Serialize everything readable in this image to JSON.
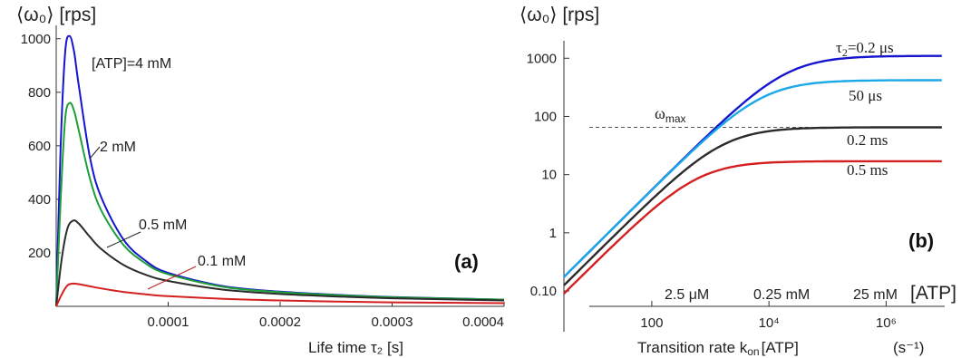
{
  "chart_data": [
    {
      "type": "line",
      "panel_label": "(a)",
      "ylabel": "⟨ω₀⟩ [rps]",
      "xlabel": "Life time  τ₂ [s]",
      "xlim": [
        0,
        0.0004
      ],
      "ylim": [
        0,
        1050
      ],
      "xticks": [
        0.0001,
        0.0002,
        0.0003,
        0.0004
      ],
      "xtick_labels": [
        "0.0001",
        "0.0002",
        "0.0003",
        "0.0004"
      ],
      "yticks": [
        200,
        400,
        600,
        800,
        1000
      ],
      "ytick_labels": [
        "200",
        "400",
        "600",
        "800",
        "1000"
      ],
      "series": [
        {
          "name": "[ATP]=4 mM",
          "color": "#1515d0",
          "x": [
            0,
            4e-06,
            8e-06,
            1.2e-05,
            1.6e-05,
            2e-05,
            3e-05,
            4e-05,
            6e-05,
            8e-05,
            0.0001,
            0.00015,
            0.0002,
            0.00025,
            0.0003,
            0.0004
          ],
          "y": [
            0,
            600,
            950,
            1010,
            950,
            830,
            560,
            410,
            250,
            170,
            125,
            75,
            55,
            43,
            35,
            25
          ]
        },
        {
          "name": "2 mM",
          "color": "#1f9e3a",
          "x": [
            0,
            4e-06,
            8e-06,
            1.2e-05,
            1.6e-05,
            2e-05,
            3e-05,
            4e-05,
            6e-05,
            8e-05,
            0.0001,
            0.00015,
            0.0002,
            0.00025,
            0.0003,
            0.0004
          ],
          "y": [
            0,
            400,
            700,
            760,
            730,
            660,
            480,
            360,
            230,
            160,
            120,
            72,
            53,
            42,
            34,
            25
          ]
        },
        {
          "name": "0.5 mM",
          "color": "#2b2b2b",
          "x": [
            0,
            5e-06,
            1e-05,
            1.5e-05,
            2e-05,
            3e-05,
            4e-05,
            6e-05,
            8e-05,
            0.0001,
            0.00015,
            0.0002,
            0.00025,
            0.0003,
            0.0004
          ],
          "y": [
            0,
            180,
            290,
            320,
            310,
            260,
            215,
            155,
            118,
            95,
            62,
            46,
            37,
            30,
            22
          ]
        },
        {
          "name": "0.1 mM",
          "color": "#d42020",
          "x": [
            0,
            5e-06,
            1e-05,
            1.5e-05,
            2e-05,
            3e-05,
            4e-05,
            6e-05,
            8e-05,
            0.0001,
            0.00015,
            0.0002,
            0.00025,
            0.0003,
            0.0004
          ],
          "y": [
            0,
            45,
            78,
            85,
            83,
            75,
            67,
            54,
            45,
            38,
            28,
            22,
            18,
            15,
            12
          ]
        }
      ],
      "annotations": [
        "[ATP]=4 mM",
        "2 mM",
        "0.5 mM",
        "0.1 mM"
      ]
    },
    {
      "type": "line",
      "panel_label": "(b)",
      "ylabel": "⟨ω₀⟩ [rps]",
      "xlabel": "Transition rate  k",
      "xlabel_sub": "on",
      "xlabel_tail": "[ATP]",
      "xunit": "(s⁻¹)",
      "xscale": "log",
      "yscale": "log",
      "xlim_log10": [
        0.5,
        7.0
      ],
      "ylim_log10": [
        -1.7,
        3.3
      ],
      "xtick_labels": [
        "100",
        "10⁴",
        "10⁶"
      ],
      "xtick_values": [
        100,
        10000,
        1000000
      ],
      "ytick_labels": [
        "0.10",
        "1",
        "10",
        "100",
        "1000"
      ],
      "ytick_values": [
        0.1,
        1,
        10,
        100,
        1000
      ],
      "omega_max_label": "ω",
      "omega_max_sub": "max",
      "omega_max_value": 65,
      "top_axis_label": "[ATP]",
      "top_axis_ticks": [
        "2.5 μM",
        "0.25 mM",
        "25 mM"
      ],
      "series": [
        {
          "name": "τ₂=0.2 μs",
          "color": "#1515d0",
          "plateau": 1100
        },
        {
          "name": "50 μs",
          "color": "#1aa8e8",
          "plateau": 420
        },
        {
          "name": "0.2 ms",
          "color": "#2b2b2b",
          "plateau": 65
        },
        {
          "name": "0.5 ms",
          "color": "#d42020",
          "plateau": 17
        }
      ],
      "series_label_texts": {
        "tau_prefix": "τ",
        "tau_sub": "2",
        "tau_value": "=0.2 μs"
      }
    }
  ]
}
